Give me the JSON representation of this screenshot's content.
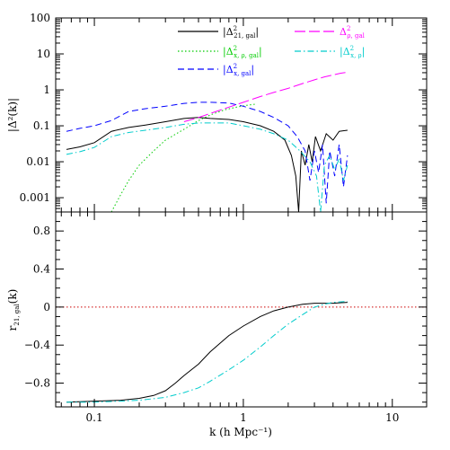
{
  "chart_data": [
    {
      "type": "line",
      "panel": "top",
      "xscale": "log",
      "yscale": "log",
      "xlim": [
        0.055,
        17
      ],
      "ylim": [
        0.0004,
        100
      ],
      "ylabel": "|Δ²(k)|",
      "yticks": [
        {
          "v": 100,
          "label": "100"
        },
        {
          "v": 10,
          "label": "10"
        },
        {
          "v": 1,
          "label": "1"
        },
        {
          "v": 0.1,
          "label": "0.1"
        },
        {
          "v": 0.01,
          "label": "0.01"
        },
        {
          "v": 0.001,
          "label": "0.001"
        }
      ],
      "legend_placement": "top-right",
      "series": [
        {
          "key": "s21",
          "name_main": "|Δ",
          "name_sup": "2",
          "name_sub": "21, gal",
          "name_tail": "|",
          "color": "#000000",
          "dash": "none",
          "points": [
            [
              0.065,
              0.022
            ],
            [
              0.08,
              0.026
            ],
            [
              0.1,
              0.034
            ],
            [
              0.13,
              0.07
            ],
            [
              0.17,
              0.09
            ],
            [
              0.22,
              0.105
            ],
            [
              0.3,
              0.13
            ],
            [
              0.4,
              0.16
            ],
            [
              0.5,
              0.17
            ],
            [
              0.6,
              0.16
            ],
            [
              0.8,
              0.15
            ],
            [
              1.0,
              0.13
            ],
            [
              1.3,
              0.1
            ],
            [
              1.6,
              0.07
            ],
            [
              1.9,
              0.04
            ],
            [
              2.1,
              0.015
            ],
            [
              2.25,
              0.004
            ],
            [
              2.35,
              0.0004
            ],
            [
              2.45,
              0.02
            ],
            [
              2.6,
              0.008
            ],
            [
              2.75,
              0.03
            ],
            [
              2.9,
              0.01
            ],
            [
              3.05,
              0.05
            ],
            [
              3.3,
              0.02
            ],
            [
              3.6,
              0.06
            ],
            [
              4.0,
              0.04
            ],
            [
              4.4,
              0.07
            ],
            [
              5.0,
              0.075
            ]
          ]
        },
        {
          "key": "sxp",
          "name_main": "|Δ",
          "name_sup": "2",
          "name_sub": "x, ρ, gal",
          "name_tail": "|",
          "color": "#00cc00",
          "dash": "1.5,2.5",
          "points": [
            [
              0.13,
              0.0004
            ],
            [
              0.15,
              0.0012
            ],
            [
              0.17,
              0.003
            ],
            [
              0.2,
              0.008
            ],
            [
              0.25,
              0.02
            ],
            [
              0.3,
              0.04
            ],
            [
              0.4,
              0.08
            ],
            [
              0.5,
              0.14
            ],
            [
              0.6,
              0.2
            ],
            [
              0.75,
              0.28
            ],
            [
              0.9,
              0.33
            ],
            [
              1.05,
              0.37
            ],
            [
              1.2,
              0.4
            ]
          ]
        },
        {
          "key": "sx",
          "name_main": "|Δ",
          "name_sup": "2",
          "name_sub": "x, gal",
          "name_tail": "|",
          "color": "#0000ff",
          "dash": "7,4",
          "points": [
            [
              0.065,
              0.07
            ],
            [
              0.08,
              0.085
            ],
            [
              0.1,
              0.1
            ],
            [
              0.13,
              0.14
            ],
            [
              0.17,
              0.25
            ],
            [
              0.22,
              0.3
            ],
            [
              0.3,
              0.35
            ],
            [
              0.4,
              0.42
            ],
            [
              0.5,
              0.45
            ],
            [
              0.6,
              0.45
            ],
            [
              0.8,
              0.43
            ],
            [
              1.0,
              0.35
            ],
            [
              1.3,
              0.25
            ],
            [
              1.6,
              0.17
            ],
            [
              2.0,
              0.1
            ],
            [
              2.3,
              0.05
            ],
            [
              2.6,
              0.02
            ],
            [
              2.8,
              0.003
            ],
            [
              3.0,
              0.02
            ],
            [
              3.2,
              0.005
            ],
            [
              3.4,
              0.03
            ],
            [
              3.6,
              0.0007
            ],
            [
              3.8,
              0.02
            ],
            [
              4.1,
              0.004
            ],
            [
              4.4,
              0.03
            ],
            [
              4.7,
              0.002
            ],
            [
              5.0,
              0.015
            ]
          ]
        },
        {
          "key": "srho",
          "name_main": "Δ",
          "name_sup": "2",
          "name_sub": "ρ, gal",
          "name_tail": "",
          "color": "#ff00ff",
          "dash": "12,4",
          "points": [
            [
              0.4,
              0.13
            ],
            [
              0.5,
              0.17
            ],
            [
              0.6,
              0.22
            ],
            [
              0.8,
              0.33
            ],
            [
              1.0,
              0.45
            ],
            [
              1.3,
              0.65
            ],
            [
              1.6,
              0.85
            ],
            [
              2.0,
              1.1
            ],
            [
              2.5,
              1.5
            ],
            [
              3.0,
              1.9
            ],
            [
              3.5,
              2.3
            ],
            [
              4.0,
              2.6
            ],
            [
              4.5,
              2.9
            ],
            [
              5.0,
              3.1
            ]
          ]
        },
        {
          "key": "sxrho",
          "name_main": "|Δ",
          "name_sup": "2",
          "name_sub": "x, ρ",
          "name_tail": "|",
          "color": "#00cccc",
          "dash": "7,3,1.5,3",
          "points": [
            [
              0.065,
              0.016
            ],
            [
              0.08,
              0.019
            ],
            [
              0.1,
              0.025
            ],
            [
              0.13,
              0.05
            ],
            [
              0.17,
              0.065
            ],
            [
              0.22,
              0.075
            ],
            [
              0.3,
              0.09
            ],
            [
              0.4,
              0.11
            ],
            [
              0.5,
              0.12
            ],
            [
              0.6,
              0.12
            ],
            [
              0.8,
              0.12
            ],
            [
              1.0,
              0.1
            ],
            [
              1.3,
              0.08
            ],
            [
              1.6,
              0.06
            ],
            [
              2.0,
              0.04
            ],
            [
              2.4,
              0.02
            ],
            [
              2.8,
              0.01
            ],
            [
              3.1,
              0.004
            ],
            [
              3.3,
              0.0004
            ],
            [
              3.5,
              0.008
            ],
            [
              3.8,
              0.015
            ],
            [
              4.1,
              0.006
            ],
            [
              4.4,
              0.012
            ],
            [
              4.7,
              0.003
            ],
            [
              5.0,
              0.008
            ]
          ]
        }
      ]
    },
    {
      "type": "line",
      "panel": "bottom",
      "xscale": "log",
      "xlim": [
        0.055,
        17
      ],
      "ylim": [
        -1.05,
        1.0
      ],
      "xlabel": "k (h Mpc⁻¹)",
      "ylabel_main": "r",
      "ylabel_sub": "21, gal",
      "ylabel_tail": "(k)",
      "xticks": [
        {
          "v": 0.1,
          "label": "0.1"
        },
        {
          "v": 1,
          "label": "1"
        },
        {
          "v": 10,
          "label": "10"
        }
      ],
      "yticks": [
        {
          "v": 0.8,
          "label": "0.8"
        },
        {
          "v": 0.4,
          "label": "0.4"
        },
        {
          "v": 0,
          "label": "0"
        },
        {
          "v": -0.4,
          "label": "−0.4"
        },
        {
          "v": -0.8,
          "label": "−0.8"
        }
      ],
      "reference_line": {
        "y": 0,
        "color": "#cc0000"
      },
      "series": [
        {
          "key": "r_black",
          "color": "#000000",
          "dash": "none",
          "points": [
            [
              0.065,
              -1.0
            ],
            [
              0.1,
              -0.99
            ],
            [
              0.15,
              -0.98
            ],
            [
              0.2,
              -0.96
            ],
            [
              0.25,
              -0.93
            ],
            [
              0.3,
              -0.88
            ],
            [
              0.35,
              -0.8
            ],
            [
              0.4,
              -0.72
            ],
            [
              0.5,
              -0.6
            ],
            [
              0.6,
              -0.47
            ],
            [
              0.8,
              -0.3
            ],
            [
              1.0,
              -0.2
            ],
            [
              1.3,
              -0.1
            ],
            [
              1.6,
              -0.04
            ],
            [
              2.0,
              0.0
            ],
            [
              2.5,
              0.03
            ],
            [
              3.0,
              0.04
            ],
            [
              4.0,
              0.04
            ],
            [
              5.0,
              0.05
            ]
          ]
        },
        {
          "key": "r_cyan",
          "color": "#00cccc",
          "dash": "7,3,1.5,3",
          "points": [
            [
              0.065,
              -1.0
            ],
            [
              0.1,
              -1.0
            ],
            [
              0.15,
              -0.99
            ],
            [
              0.2,
              -0.98
            ],
            [
              0.3,
              -0.95
            ],
            [
              0.4,
              -0.9
            ],
            [
              0.5,
              -0.85
            ],
            [
              0.6,
              -0.78
            ],
            [
              0.8,
              -0.66
            ],
            [
              1.0,
              -0.56
            ],
            [
              1.3,
              -0.42
            ],
            [
              1.6,
              -0.3
            ],
            [
              2.0,
              -0.18
            ],
            [
              2.5,
              -0.08
            ],
            [
              3.0,
              0.0
            ],
            [
              3.5,
              0.03
            ],
            [
              4.0,
              0.05
            ],
            [
              5.0,
              0.06
            ]
          ]
        }
      ]
    }
  ]
}
